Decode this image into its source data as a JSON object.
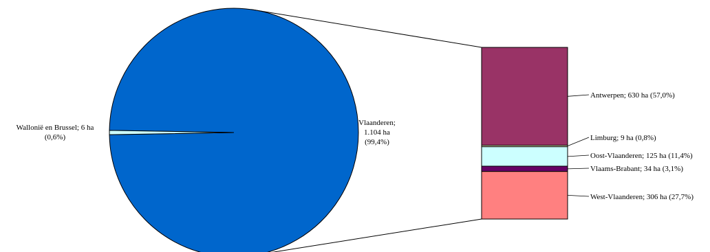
{
  "chart_data": {
    "type": "pie-of-bar",
    "pie": {
      "slices": [
        {
          "name": "Vlaanderen",
          "value": 1104,
          "unit": "ha",
          "percent": 99.4,
          "label_lines": [
            "Vlaanderen;",
            "1.104 ha",
            "(99,4%)"
          ],
          "color": "#0066CC"
        },
        {
          "name": "Wallonië en Brussel",
          "value": 6,
          "unit": "ha",
          "percent": 0.6,
          "label_lines": [
            "Wallonië en Brussel; 6 ha",
            "(0,6%)"
          ],
          "color": "#CCFFFF"
        }
      ]
    },
    "bar": {
      "segments": [
        {
          "name": "Antwerpen",
          "value": 630,
          "unit": "ha",
          "percent": 57.0,
          "label": "Antwerpen; 630 ha (57,0%)",
          "color": "#993366"
        },
        {
          "name": "Limburg",
          "value": 9,
          "unit": "ha",
          "percent": 0.8,
          "label": "Limburg; 9 ha (0,8%)",
          "color": "#FFFFCC"
        },
        {
          "name": "Oost-Vlaanderen",
          "value": 125,
          "unit": "ha",
          "percent": 11.4,
          "label": "Oost-Vlaanderen; 125 ha (11,4%)",
          "color": "#CCFFFF"
        },
        {
          "name": "Vlaams-Brabant",
          "value": 34,
          "unit": "ha",
          "percent": 3.1,
          "label": "Vlaams-Brabant; 34 ha (3,1%)",
          "color": "#660066"
        },
        {
          "name": "West-Vlaanderen",
          "value": 306,
          "unit": "ha",
          "percent": 27.7,
          "label": "West-Vlaanderen; 306 ha (27,7%)",
          "color": "#FF8080"
        }
      ]
    }
  }
}
